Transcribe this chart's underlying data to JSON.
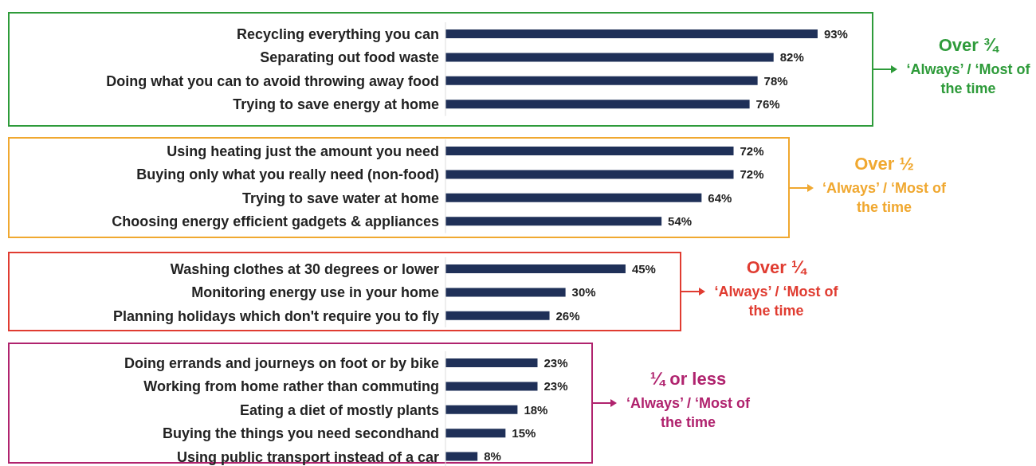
{
  "chart_data": [
    {
      "type": "bar",
      "orientation": "horizontal",
      "categories": [
        "Recycling everything you can",
        "Separating out food waste",
        "Doing what you can to avoid throwing away food",
        "Trying to save energy at home"
      ],
      "values": [
        93,
        82,
        78,
        76
      ],
      "value_labels": [
        "93%",
        "82%",
        "78%",
        "76%"
      ],
      "color": "#1f3058",
      "tick_labels": false,
      "annotations": [
        "Over ¾",
        "‘Always’ / ‘Most of the time"
      ]
    },
    {
      "type": "bar",
      "orientation": "horizontal",
      "categories": [
        "Using heating just the amount you need",
        "Buying only what you really need (non-food)",
        "Trying to save water at home",
        "Choosing energy efficient gadgets & appliances"
      ],
      "values": [
        72,
        72,
        64,
        54
      ],
      "value_labels": [
        "72%",
        "72%",
        "64%",
        "54%"
      ],
      "color": "#1f3058",
      "tick_labels": false,
      "annotations": [
        "Over ½",
        "‘Always’ / ‘Most of the time"
      ]
    },
    {
      "type": "bar",
      "orientation": "horizontal",
      "categories": [
        "Washing clothes at 30 degrees or lower",
        "Monitoring energy use in your home",
        "Planning holidays which don't require you to fly"
      ],
      "values": [
        45,
        30,
        26
      ],
      "value_labels": [
        "45%",
        "30%",
        "26%"
      ],
      "color": "#1f3058",
      "tick_labels": false,
      "annotations": [
        "Over ¼",
        "‘Always’ / ‘Most of the time"
      ]
    },
    {
      "type": "bar",
      "orientation": "horizontal",
      "categories": [
        "Doing errands and journeys on foot or by bike",
        "Working from home rather than commuting",
        "Eating a diet of mostly plants",
        "Buying the things you need secondhand",
        "Using public transport instead of a car"
      ],
      "values": [
        23,
        23,
        18,
        15,
        8
      ],
      "value_labels": [
        "23%",
        "23%",
        "18%",
        "15%",
        "8%"
      ],
      "color": "#1f3058",
      "tick_labels": false,
      "annotations": [
        "¼ or less",
        "‘Always’ / ‘Most of the time"
      ]
    }
  ]
}
